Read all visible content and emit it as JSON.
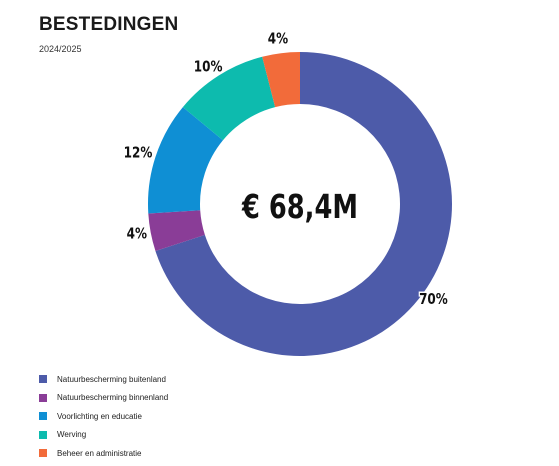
{
  "header": {
    "title": "BESTEDINGEN",
    "subtitle": "2024/2025"
  },
  "chart_data": {
    "type": "pie",
    "variant": "donut",
    "center_label": "€ 68,4M",
    "slices": [
      {
        "name": "Natuurbescherming buitenland",
        "value": 70,
        "label": "70%",
        "color": "#4d5ba9"
      },
      {
        "name": "Natuurbescherming binnenland",
        "value": 4,
        "label": "4%",
        "color": "#8a3d97"
      },
      {
        "name": "Voorlichting en educatie",
        "value": 12,
        "label": "12%",
        "color": "#0f8fd4"
      },
      {
        "name": "Werving",
        "value": 10,
        "label": "10%",
        "color": "#0dbbae"
      },
      {
        "name": "Beheer en administratie",
        "value": 4,
        "label": "4%",
        "color": "#f26b3a"
      }
    ],
    "legend_position": "bottom-left"
  }
}
